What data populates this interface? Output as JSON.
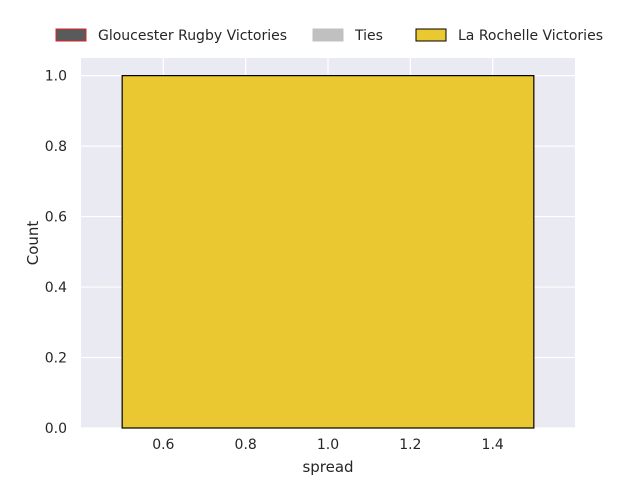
{
  "chart_data": {
    "type": "bar",
    "title": "",
    "xlabel": "spread",
    "ylabel": "Count",
    "xlim": [
      0.4,
      1.6
    ],
    "ylim": [
      0.0,
      1.05
    ],
    "x_ticks": [
      "0.6",
      "0.8",
      "1.0",
      "1.2",
      "1.4"
    ],
    "x_tick_values": [
      0.6,
      0.8,
      1.0,
      1.2,
      1.4
    ],
    "y_ticks": [
      "0.0",
      "0.2",
      "0.4",
      "0.6",
      "0.8",
      "1.0"
    ],
    "y_tick_values": [
      0.0,
      0.2,
      0.4,
      0.6,
      0.8,
      1.0
    ],
    "grid": true,
    "background_color": "#eaeaf2",
    "legend_position": "top",
    "series": [
      {
        "name": "Gloucester Rugby Victories",
        "color": "#5a5a5a",
        "edge_color": "#d62728",
        "bars": []
      },
      {
        "name": "Ties",
        "color": "#c0c0c0",
        "edge_color": "#c0c0c0",
        "bars": []
      },
      {
        "name": "La Rochelle Victories",
        "color": "#e9c832",
        "edge_color": "#000000",
        "bars": [
          {
            "x_start": 0.5,
            "x_end": 1.5,
            "count": 1
          }
        ]
      }
    ]
  }
}
